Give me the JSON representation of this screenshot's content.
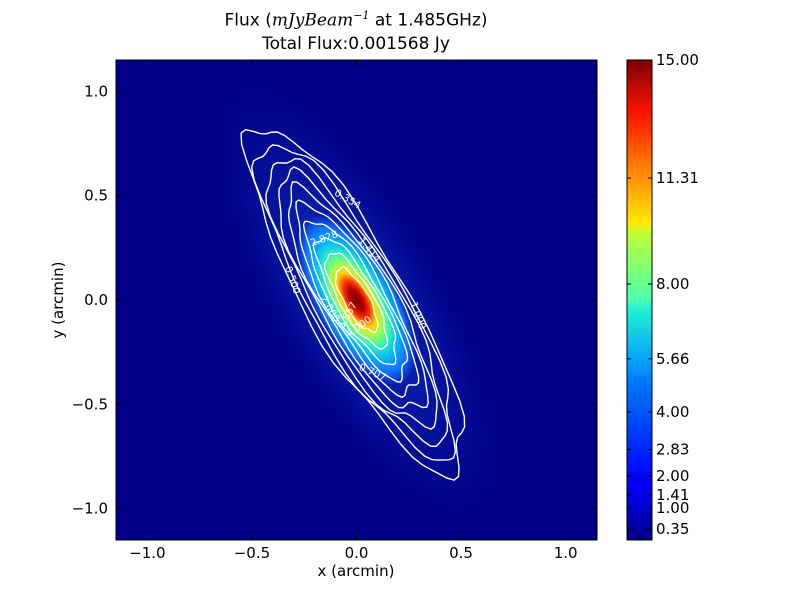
{
  "chart_data": {
    "type": "heatmap",
    "title": {
      "prefix": "Flux (",
      "unit_math": "mJyBeam",
      "unit_exponent": "−1",
      "suffix": " at 1.485GHz)"
    },
    "subtitle": "Total Flux:0.001568 Jy",
    "xlabel": "x (arcmin)",
    "ylabel": "y (arcmin)",
    "xlim": [
      -1.15,
      1.15
    ],
    "ylim": [
      -1.15,
      1.15
    ],
    "xticks": [
      -1.0,
      -0.5,
      0.0,
      0.5,
      1.0
    ],
    "xtick_labels": [
      "−1.0",
      "−0.5",
      "0.0",
      "0.5",
      "1.0"
    ],
    "yticks": [
      -1.0,
      -0.5,
      0.0,
      0.5,
      1.0
    ],
    "ytick_labels": [
      "−1.0",
      "−0.5",
      "0.0",
      "0.5",
      "1.0"
    ],
    "colorbar": {
      "min": 0.0,
      "max": 15.0,
      "colormap": "jet",
      "ticks": [
        0.35,
        1.0,
        1.41,
        2.0,
        2.83,
        4.0,
        5.66,
        8.0,
        11.31,
        15.0
      ],
      "tick_labels": [
        "0.35",
        "1.00",
        "1.41",
        "2.00",
        "2.83",
        "4.00",
        "5.66",
        "8.00",
        "11.31",
        "15.00"
      ]
    },
    "source": {
      "center": [
        0.0,
        0.0
      ],
      "orientation_deg_from_x": -60,
      "peak_flux": 15.0
    },
    "contours": {
      "color": "#ffffff",
      "levels": [
        0.354,
        0.5,
        0.707,
        1.0,
        1.414,
        2.0,
        2.828,
        4.0,
        5.657,
        8.0
      ],
      "labels": [
        {
          "text": "0.354",
          "x": -0.05,
          "y": 0.47,
          "angle": 30
        },
        {
          "text": "1.414",
          "x": 0.05,
          "y": 0.23,
          "angle": 50
        },
        {
          "text": "2.828",
          "x": -0.15,
          "y": 0.28,
          "angle": -20
        },
        {
          "text": "0.500",
          "x": -0.32,
          "y": 0.09,
          "angle": 70
        },
        {
          "text": "2.000",
          "x": -0.14,
          "y": -0.05,
          "angle": 60
        },
        {
          "text": "4.000",
          "x": 0.02,
          "y": -0.14,
          "angle": -35
        },
        {
          "text": "5.657",
          "x": -0.03,
          "y": -0.08,
          "angle": -60
        },
        {
          "text": "1.000",
          "x": 0.28,
          "y": -0.08,
          "angle": 70
        },
        {
          "text": "0.707",
          "x": 0.07,
          "y": -0.36,
          "angle": 25
        }
      ]
    }
  }
}
